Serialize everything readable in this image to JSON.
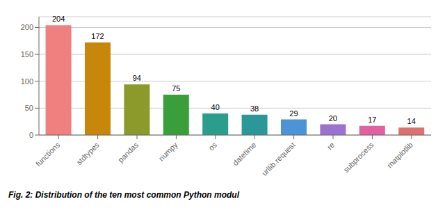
{
  "chart_data": {
    "type": "bar",
    "caption": "Fig. 2: Distribution of the ten most common Python modul",
    "categories": [
      "functions",
      "stdtypes",
      "pandas",
      "numpy",
      "os",
      "datetime",
      "urllib.request",
      "re",
      "subprocess",
      "matplotlib"
    ],
    "values": [
      204,
      172,
      94,
      75,
      40,
      38,
      29,
      20,
      17,
      14
    ],
    "colors": [
      "#f08080",
      "#c8860a",
      "#8b9a2a",
      "#3a9e3a",
      "#2a9e8a",
      "#2a9898",
      "#4d94d6",
      "#9b72d0",
      "#e060a0",
      "#e07070"
    ],
    "ylim": [
      0,
      220
    ],
    "yticks": [
      0,
      50,
      100,
      150,
      200
    ],
    "grid": true,
    "data_labels": true
  }
}
